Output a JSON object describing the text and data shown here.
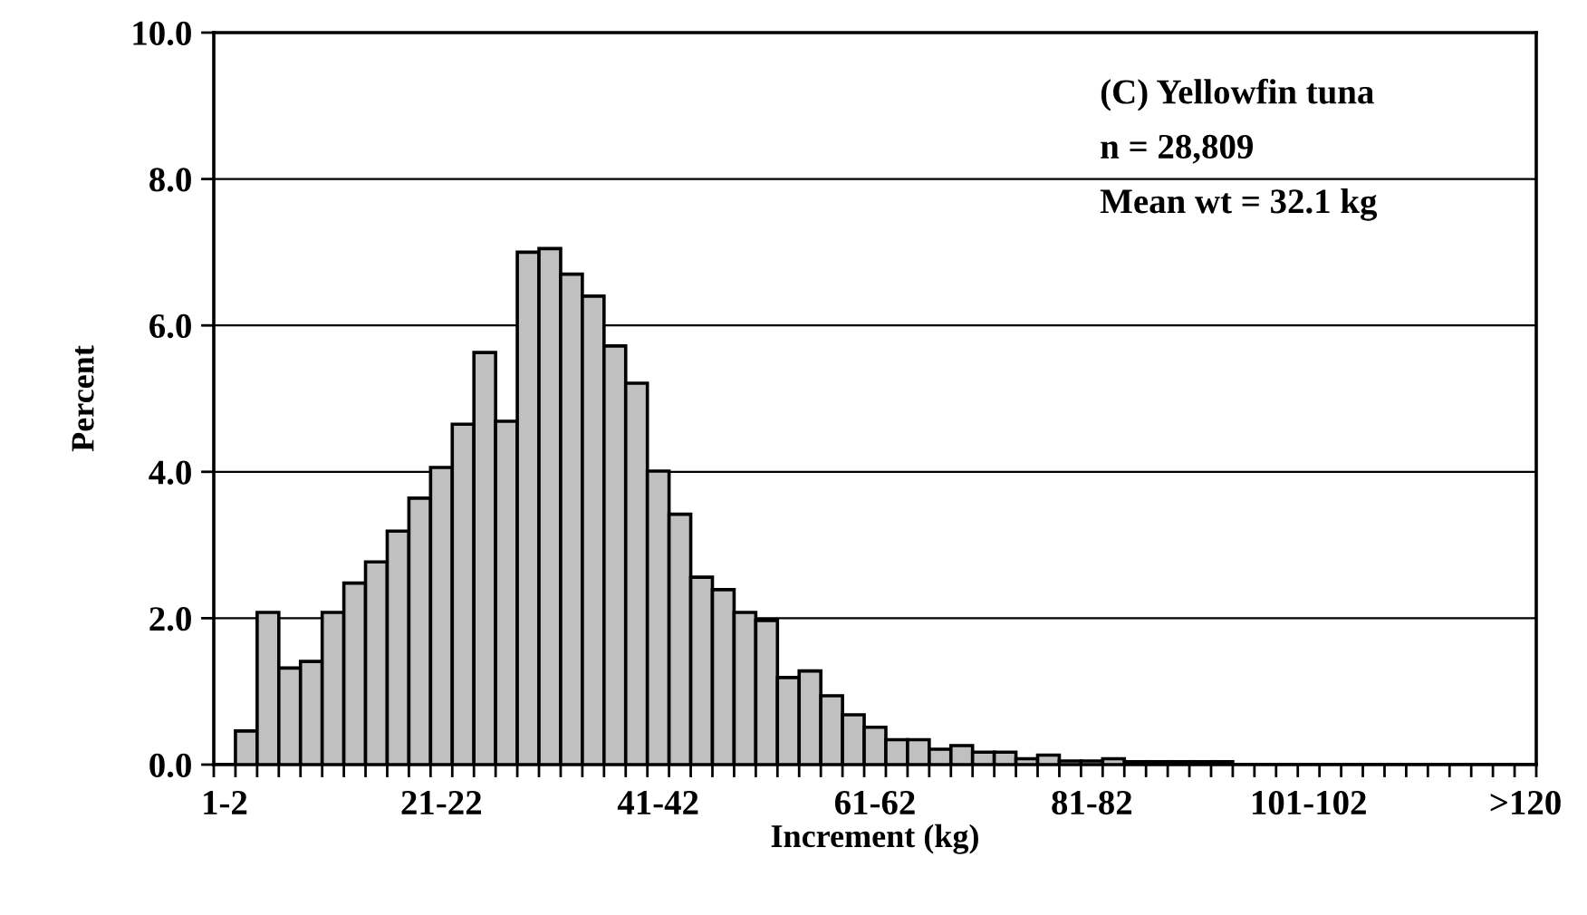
{
  "chart_data": {
    "type": "bar",
    "categories": [
      "1-2",
      null,
      null,
      null,
      null,
      null,
      null,
      null,
      null,
      null,
      "21-22",
      null,
      null,
      null,
      null,
      null,
      null,
      null,
      null,
      null,
      "41-42",
      null,
      null,
      null,
      null,
      null,
      null,
      null,
      null,
      null,
      "61-62",
      null,
      null,
      null,
      null,
      null,
      null,
      null,
      null,
      null,
      "81-82",
      null,
      null,
      null,
      null,
      null,
      null,
      null,
      null,
      null,
      "101-102",
      null,
      null,
      null,
      null,
      null,
      null,
      null,
      null,
      null,
      ">120"
    ],
    "values": [
      0,
      0.46,
      2.08,
      1.32,
      1.41,
      2.08,
      2.48,
      2.77,
      3.19,
      3.64,
      4.06,
      4.65,
      5.63,
      4.69,
      7.0,
      7.05,
      6.7,
      6.4,
      5.72,
      5.21,
      4.01,
      3.42,
      2.56,
      2.39,
      2.08,
      1.97,
      1.19,
      1.28,
      0.94,
      0.68,
      0.51,
      0.34,
      0.34,
      0.21,
      0.26,
      0.17,
      0.17,
      0.08,
      0.13,
      0.05,
      0.05,
      0.08,
      0.04,
      0.04,
      0.04,
      0.04,
      0.04,
      0,
      0,
      0,
      0,
      0,
      0,
      0,
      0,
      0,
      0,
      0,
      0,
      0,
      0
    ],
    "color": "#c0c0c0",
    "xlabel": "Increment (kg)",
    "ylabel": "Percent",
    "ylim": [
      0,
      10
    ],
    "yticks": [
      {
        "value": 0,
        "label": "0.0"
      },
      {
        "value": 2,
        "label": "2.0"
      },
      {
        "value": 4,
        "label": "4.0"
      },
      {
        "value": 6,
        "label": "6.0"
      },
      {
        "value": 8,
        "label": "8.0"
      },
      {
        "value": 10,
        "label": "10.0"
      }
    ],
    "grid": "y",
    "annotations": [
      "(C) Yellowfin tuna",
      "n = 28,809",
      "Mean wt = 32.1 kg"
    ]
  }
}
